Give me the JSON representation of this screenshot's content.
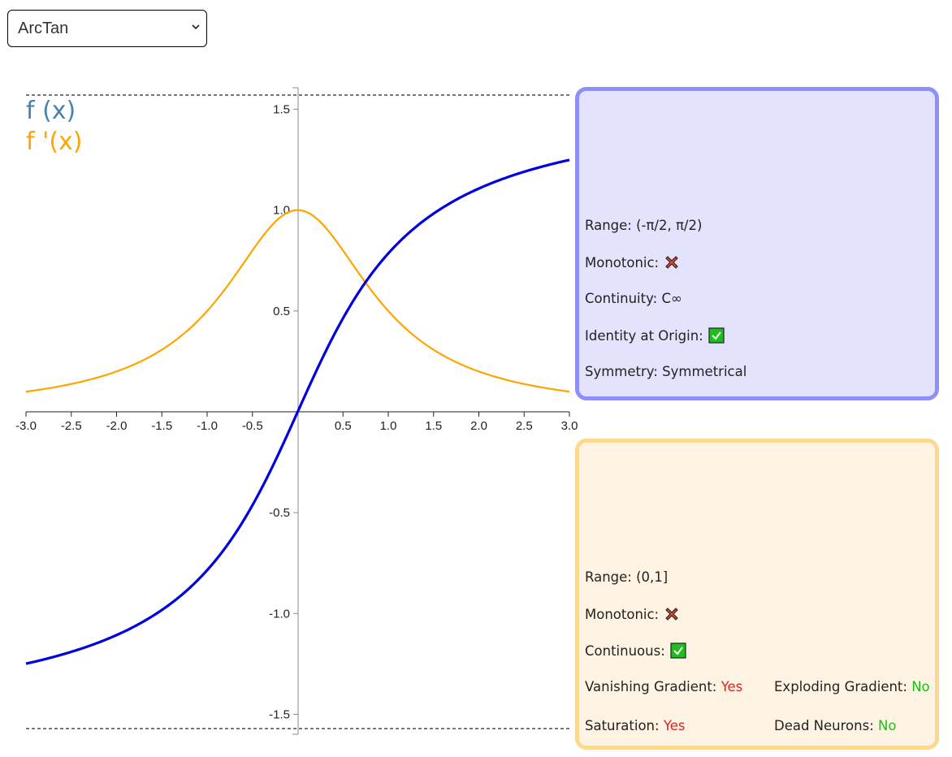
{
  "selector": {
    "value": "ArcTan",
    "options": [
      "ArcTan"
    ]
  },
  "legend": {
    "function_label": "f (x)",
    "derivative_label": "f '(x)"
  },
  "colors": {
    "function": "#0000e0",
    "derivative": "#ffa500",
    "legend_function": "#4682b4",
    "yes": "#e02020",
    "no": "#18c018"
  },
  "chart_data": {
    "type": "line",
    "series": [
      {
        "name": "f (x)",
        "expression": "atan(x)",
        "x": [
          -3,
          -2.5,
          -2,
          -1.5,
          -1,
          -0.5,
          0,
          0.5,
          1,
          1.5,
          2,
          2.5,
          3
        ],
        "y": [
          -1.249,
          -1.19,
          -1.107,
          -0.983,
          -0.785,
          -0.464,
          0,
          0.464,
          0.785,
          0.983,
          1.107,
          1.19,
          1.249
        ]
      },
      {
        "name": "f '(x)",
        "expression": "1/(1+x^2)",
        "x": [
          -3,
          -2.5,
          -2,
          -1.5,
          -1,
          -0.5,
          0,
          0.5,
          1,
          1.5,
          2,
          2.5,
          3
        ],
        "y": [
          0.1,
          0.138,
          0.2,
          0.308,
          0.5,
          0.8,
          1,
          0.8,
          0.5,
          0.308,
          0.2,
          0.138,
          0.1
        ]
      }
    ],
    "xlim": [
      -3,
      3
    ],
    "ylim": [
      -1.5708,
      1.5708
    ],
    "x_ticks": [
      "-3.0",
      "-2.5",
      "-2.0",
      "-1.5",
      "-1.0",
      "-0.5",
      "0.5",
      "1.0",
      "1.5",
      "2.0",
      "2.5",
      "3.0"
    ],
    "x_tick_values": [
      -3,
      -2.5,
      -2,
      -1.5,
      -1,
      -0.5,
      0.5,
      1,
      1.5,
      2,
      2.5,
      3
    ],
    "y_ticks": [
      "1.5",
      "1.0",
      "0.5",
      "-0.5",
      "-1.0",
      "-1.5"
    ],
    "y_tick_values": [
      1.5,
      1,
      0.5,
      -0.5,
      -1,
      -1.5
    ],
    "asymptotes": [
      1.5708,
      -1.5708
    ],
    "grid": false
  },
  "function_panel": {
    "range": "Range: (-π/2, π/2)",
    "monotonic_label": "Monotonic:",
    "monotonic_icon": "cross-icon",
    "continuity": "Continuity: C∞",
    "identity_label": "Identity at Origin:",
    "identity_icon": "check-icon",
    "symmetry": "Symmetry: Symmetrical"
  },
  "derivative_panel": {
    "range": "Range: (0,1]",
    "monotonic_label": "Monotonic:",
    "monotonic_icon": "cross-icon",
    "continuous_label": "Continuous:",
    "continuous_icon": "check-icon",
    "vanishing_label": "Vanishing Gradient:",
    "vanishing_value": "Yes",
    "exploding_label": "Exploding Gradient:",
    "exploding_value": "No",
    "saturation_label": "Saturation:",
    "saturation_value": "Yes",
    "dead_label": "Dead Neurons:",
    "dead_value": "No"
  }
}
